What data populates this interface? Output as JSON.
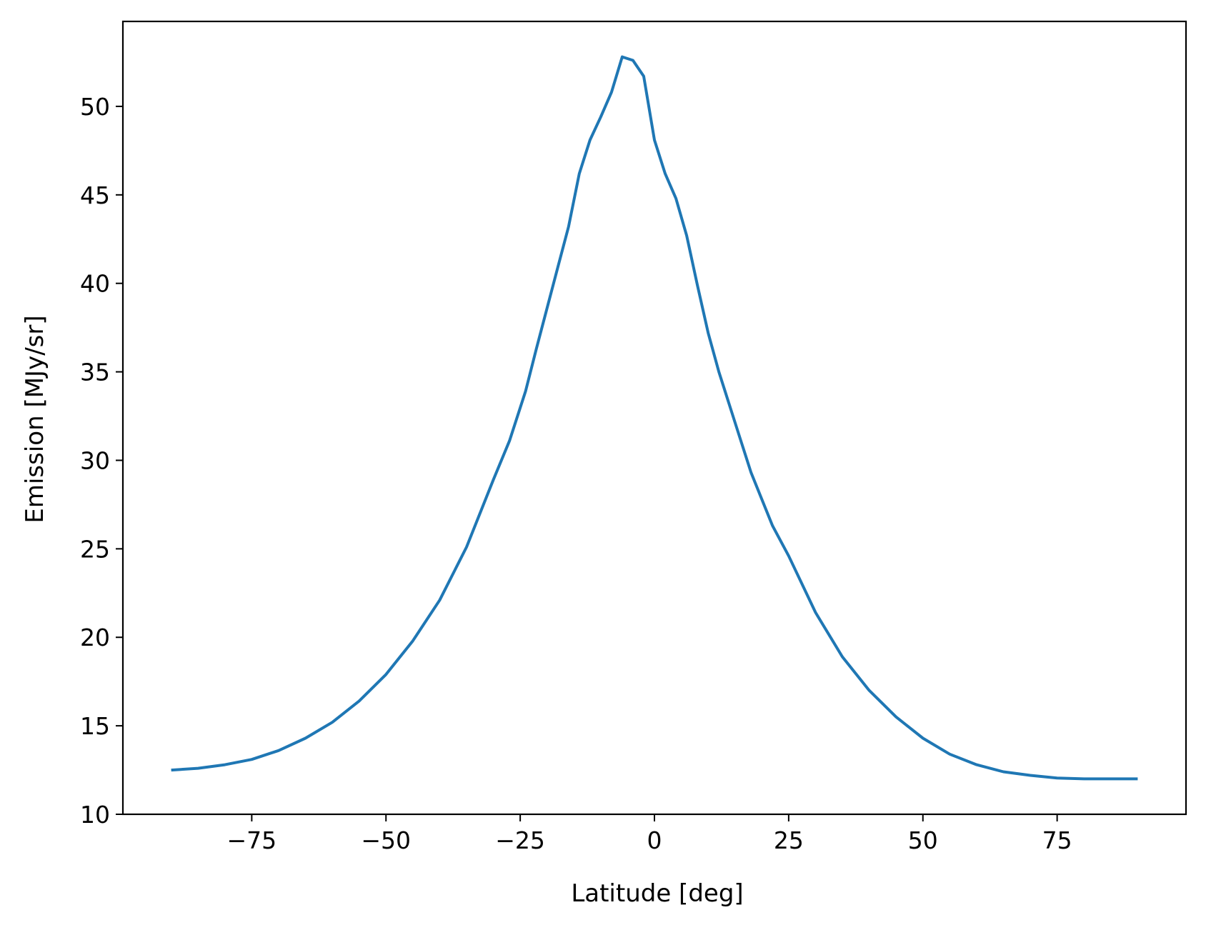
{
  "chart_data": {
    "type": "line",
    "title": "",
    "xlabel": "Latitude [deg]",
    "ylabel": "Emission [MJy/sr]",
    "xlim": [
      -99,
      99
    ],
    "ylim": [
      10,
      54.8
    ],
    "xticks": [
      -75,
      -50,
      -25,
      0,
      25,
      50,
      75
    ],
    "xtick_labels": [
      "−75",
      "−50",
      "−25",
      "0",
      "25",
      "50",
      "75"
    ],
    "yticks": [
      10,
      15,
      20,
      25,
      30,
      35,
      40,
      45,
      50
    ],
    "ytick_labels": [
      "10",
      "15",
      "20",
      "25",
      "30",
      "35",
      "40",
      "45",
      "50"
    ],
    "grid": false,
    "legend": "none",
    "series": [
      {
        "color": "#1f77b4",
        "x": [
          -90,
          -85,
          -80,
          -75,
          -70,
          -65,
          -60,
          -55,
          -50,
          -45,
          -40,
          -35,
          -30,
          -27,
          -24,
          -22,
          -20,
          -18,
          -16,
          -14,
          -12,
          -10,
          -8,
          -6,
          -4,
          -2,
          0,
          2,
          4,
          6,
          8,
          10,
          12,
          14,
          16,
          18,
          20,
          22,
          25,
          30,
          35,
          40,
          45,
          50,
          55,
          60,
          65,
          70,
          75,
          80,
          85,
          90
        ],
        "y": [
          12.5,
          12.6,
          12.8,
          13.1,
          13.6,
          14.3,
          15.2,
          16.4,
          17.9,
          19.8,
          22.1,
          25.1,
          28.9,
          31.1,
          33.9,
          36.3,
          38.6,
          40.9,
          43.2,
          46.2,
          48.1,
          49.4,
          50.8,
          52.8,
          52.6,
          51.7,
          48.1,
          46.2,
          44.8,
          42.7,
          39.9,
          37.2,
          35.0,
          33.1,
          31.2,
          29.3,
          27.8,
          26.3,
          24.6,
          21.4,
          18.9,
          17.0,
          15.5,
          14.3,
          13.4,
          12.8,
          12.4,
          12.2,
          12.05,
          12.0,
          12.0,
          12.0
        ]
      }
    ]
  }
}
